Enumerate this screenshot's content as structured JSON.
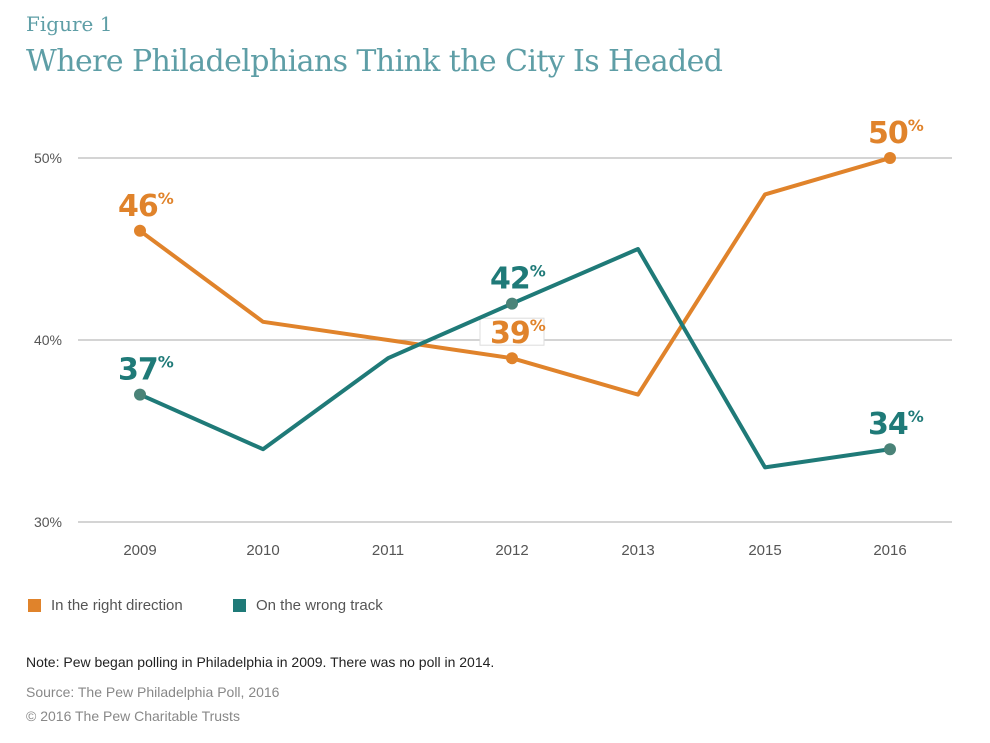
{
  "figure_label": "Figure 1",
  "chart_data": {
    "type": "line",
    "title": "Where Philadelphians Think the City Is Headed",
    "categories": [
      "2009",
      "2010",
      "2011",
      "2012",
      "2013",
      "2015",
      "2016"
    ],
    "ylim": [
      30,
      50
    ],
    "yticks": [
      30,
      40,
      50
    ],
    "ytick_labels": [
      "30%",
      "40%",
      "50%"
    ],
    "grid": true,
    "legend_position": "bottom-left",
    "series": [
      {
        "name": "In the right direction",
        "color": "#e0832b",
        "values": [
          46,
          41,
          40,
          39,
          37,
          48,
          50
        ],
        "labels": [
          {
            "index": 0,
            "text": "46%"
          },
          {
            "index": 3,
            "text": "39%"
          },
          {
            "index": 6,
            "text": "50%"
          }
        ]
      },
      {
        "name": "On the wrong track",
        "color": "#1f7a78",
        "values": [
          37,
          34,
          39,
          42,
          45,
          33,
          34
        ],
        "labels": [
          {
            "index": 0,
            "text": "37%"
          },
          {
            "index": 3,
            "text": "42%"
          },
          {
            "index": 6,
            "text": "34%"
          }
        ]
      }
    ]
  },
  "note": "Note: Pew began polling in Philadelphia in 2009. There was no poll in 2014.",
  "source": "Source: The Pew Philadelphia Poll, 2016",
  "copyright": "© 2016 The Pew Charitable Trusts"
}
